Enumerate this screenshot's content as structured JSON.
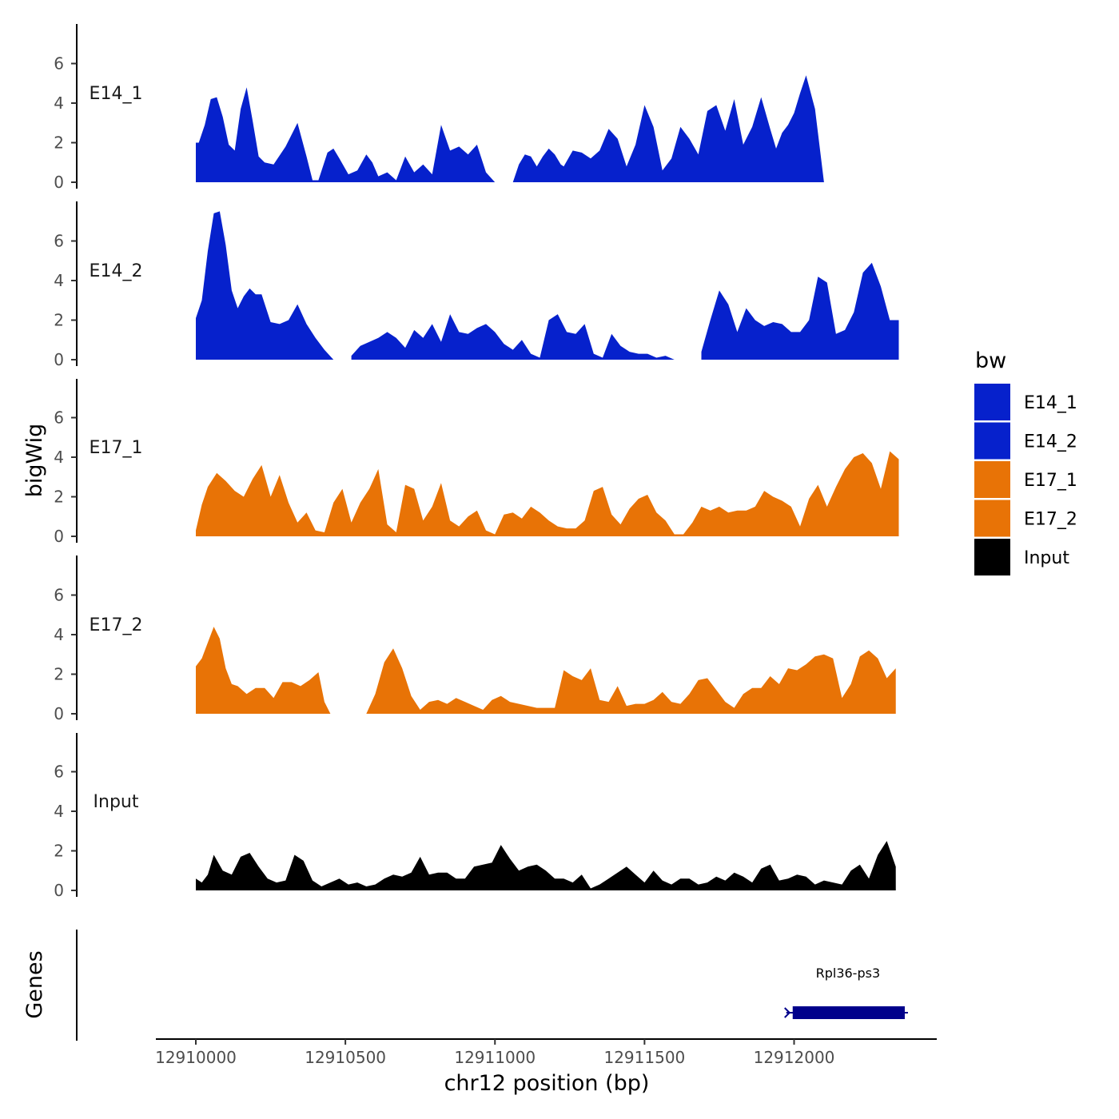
{
  "chart_data": {
    "type": "area",
    "chromosome": "chr12",
    "xlabel": "chr12 position (bp)",
    "ylabel": "bigWig",
    "genes_label": "Genes",
    "xlim": [
      12909870,
      12912470
    ],
    "x_ticks": [
      12910000,
      12910500,
      12911000,
      12911500,
      12912000
    ],
    "x_tick_labels": [
      "12910000",
      "12910500",
      "12911000",
      "12911500",
      "12912000"
    ],
    "ylim": [
      0,
      7.8
    ],
    "y_ticks": [
      0,
      2,
      4,
      6
    ],
    "y_tick_labels": [
      "0",
      "2",
      "4",
      "6"
    ],
    "legend": {
      "title": "bw",
      "position": "right",
      "entries": [
        {
          "label": "E14_1",
          "color": "#0621CC"
        },
        {
          "label": "E14_2",
          "color": "#0621CC"
        },
        {
          "label": "E17_1",
          "color": "#E87306"
        },
        {
          "label": "E17_2",
          "color": "#E87306"
        },
        {
          "label": "Input",
          "color": "#000000"
        }
      ]
    },
    "series": [
      {
        "name": "E14_1",
        "color": "#0621CC",
        "x": [
          12910000,
          12910010,
          12910030,
          12910050,
          12910070,
          12910090,
          12910110,
          12910130,
          12910150,
          12910170,
          12910190,
          12910210,
          12910230,
          12910260,
          12910300,
          12910340,
          12910370,
          12910390,
          12910410,
          12910440,
          12910460,
          12910480,
          12910510,
          12910540,
          12910570,
          12910590,
          12910610,
          12910640,
          12910670,
          12910700,
          12910730,
          12910760,
          12910790,
          12910820,
          12910850,
          12910880,
          12910910,
          12910940,
          12910970,
          12911000,
          12911020,
          12911040,
          12911060,
          12911080,
          12911100,
          12911120,
          12911140,
          12911160,
          12911180,
          12911200,
          12911220,
          12911230,
          12911260,
          12911290,
          12911320,
          12911350,
          12911380,
          12911410,
          12911440,
          12911470,
          12911500,
          12911530,
          12911560,
          12911590,
          12911620,
          12911650,
          12911680,
          12911710,
          12911740,
          12911770,
          12911800,
          12911830,
          12911860,
          12911890,
          12911920,
          12911940,
          12911960,
          12911980,
          12912000,
          12912020,
          12912040,
          12912070,
          12912100,
          12912130,
          12912160,
          12912190,
          12912220,
          12912250,
          12912270,
          12912290,
          12912310,
          12912330,
          12912350
        ],
        "values": [
          2.0,
          2.0,
          2.9,
          4.2,
          4.3,
          3.3,
          1.9,
          1.6,
          3.7,
          4.8,
          3.1,
          1.3,
          1.0,
          0.9,
          1.8,
          3.0,
          1.3,
          0.1,
          0.1,
          1.5,
          1.7,
          1.2,
          0.4,
          0.6,
          1.4,
          1.0,
          0.3,
          0.5,
          0.1,
          1.3,
          0.5,
          0.9,
          0.4,
          2.9,
          1.6,
          1.8,
          1.4,
          1.9,
          0.5,
          0.0,
          null,
          null,
          0.0,
          0.9,
          1.4,
          1.3,
          0.8,
          1.3,
          1.7,
          1.4,
          0.9,
          0.8,
          1.6,
          1.5,
          1.2,
          1.6,
          2.7,
          2.2,
          0.8,
          1.9,
          3.9,
          2.8,
          0.6,
          1.2,
          2.8,
          2.2,
          1.4,
          3.6,
          3.9,
          2.6,
          4.2,
          1.9,
          2.8,
          4.3,
          2.7,
          1.7,
          2.5,
          2.9,
          3.5,
          4.5,
          5.4,
          3.7,
          0.0,
          null,
          null,
          null,
          null,
          null,
          null,
          null,
          null,
          null,
          null
        ]
      },
      {
        "name": "E14_2",
        "color": "#0621CC",
        "x": [
          12910000,
          12910020,
          12910040,
          12910060,
          12910080,
          12910100,
          12910120,
          12910140,
          12910160,
          12910180,
          12910200,
          12910220,
          12910250,
          12910280,
          12910310,
          12910340,
          12910370,
          12910400,
          12910430,
          12910460,
          12910480,
          12910500,
          12910520,
          12910550,
          12910580,
          12910610,
          12910640,
          12910670,
          12910700,
          12910730,
          12910760,
          12910790,
          12910820,
          12910850,
          12910880,
          12910910,
          12910940,
          12910970,
          12911000,
          12911030,
          12911060,
          12911090,
          12911120,
          12911150,
          12911180,
          12911210,
          12911240,
          12911270,
          12911300,
          12911330,
          12911360,
          12911390,
          12911420,
          12911450,
          12911480,
          12911510,
          12911540,
          12911570,
          12911600,
          12911630,
          12911660,
          12911690,
          12911720,
          12911750,
          12911780,
          12911810,
          12911840,
          12911870,
          12911900,
          12911930,
          12911960,
          12911990,
          12912020,
          12912050,
          12912080,
          12912110,
          12912140,
          12912170,
          12912200,
          12912230,
          12912260,
          12912290,
          12912320,
          12912350
        ],
        "values": [
          2.1,
          3.0,
          5.5,
          7.4,
          7.5,
          5.8,
          3.5,
          2.6,
          3.2,
          3.6,
          3.3,
          3.3,
          1.9,
          1.8,
          2.0,
          2.8,
          1.8,
          1.1,
          0.5,
          0.0,
          null,
          null,
          0.2,
          0.7,
          0.9,
          1.1,
          1.4,
          1.1,
          0.6,
          1.5,
          1.1,
          1.8,
          0.9,
          2.3,
          1.4,
          1.3,
          1.6,
          1.8,
          1.4,
          0.8,
          0.5,
          1.0,
          0.3,
          0.1,
          2.0,
          2.3,
          1.4,
          1.3,
          1.8,
          0.3,
          0.1,
          1.3,
          0.7,
          0.4,
          0.3,
          0.3,
          0.1,
          0.2,
          0.0,
          null,
          null,
          0.4,
          2.0,
          3.5,
          2.8,
          1.4,
          2.6,
          2.0,
          1.7,
          1.9,
          1.8,
          1.4,
          1.4,
          2.0,
          4.2,
          3.9,
          1.3,
          1.5,
          2.4,
          4.4,
          4.9,
          3.7,
          2.0,
          2.0
        ]
      },
      {
        "name": "E17_1",
        "color": "#E87306",
        "x": [
          12910000,
          12910020,
          12910040,
          12910070,
          12910100,
          12910130,
          12910160,
          12910190,
          12910220,
          12910250,
          12910280,
          12910310,
          12910340,
          12910370,
          12910400,
          12910430,
          12910460,
          12910490,
          12910520,
          12910550,
          12910580,
          12910610,
          12910640,
          12910670,
          12910700,
          12910730,
          12910760,
          12910790,
          12910820,
          12910850,
          12910880,
          12910910,
          12910940,
          12910970,
          12911000,
          12911030,
          12911060,
          12911090,
          12911120,
          12911150,
          12911180,
          12911210,
          12911240,
          12911270,
          12911300,
          12911330,
          12911360,
          12911390,
          12911420,
          12911450,
          12911480,
          12911510,
          12911540,
          12911570,
          12911600,
          12911630,
          12911660,
          12911690,
          12911720,
          12911750,
          12911780,
          12911810,
          12911840,
          12911870,
          12911900,
          12911930,
          12911960,
          12911990,
          12912020,
          12912050,
          12912080,
          12912110,
          12912140,
          12912170,
          12912200,
          12912230,
          12912260,
          12912290,
          12912320,
          12912350
        ],
        "values": [
          0.3,
          1.6,
          2.5,
          3.2,
          2.8,
          2.3,
          2.0,
          2.9,
          3.6,
          2.0,
          3.1,
          1.7,
          0.7,
          1.2,
          0.3,
          0.2,
          1.7,
          2.4,
          0.7,
          1.7,
          2.4,
          3.4,
          0.6,
          0.2,
          2.6,
          2.4,
          0.8,
          1.5,
          2.7,
          0.8,
          0.5,
          1.0,
          1.3,
          0.3,
          0.1,
          1.1,
          1.2,
          0.9,
          1.5,
          1.2,
          0.8,
          0.5,
          0.4,
          0.4,
          0.8,
          2.3,
          2.5,
          1.1,
          0.6,
          1.4,
          1.9,
          2.1,
          1.2,
          0.8,
          0.1,
          0.1,
          0.7,
          1.5,
          1.3,
          1.5,
          1.2,
          1.3,
          1.3,
          1.5,
          2.3,
          2.0,
          1.8,
          1.5,
          0.5,
          1.9,
          2.6,
          1.5,
          2.5,
          3.4,
          4.0,
          4.2,
          3.7,
          2.4,
          4.3,
          3.9
        ]
      },
      {
        "name": "E17_2",
        "color": "#E87306",
        "x": [
          12910000,
          12910020,
          12910040,
          12910060,
          12910080,
          12910100,
          12910120,
          12910140,
          12910170,
          12910200,
          12910230,
          12910260,
          12910290,
          12910320,
          12910350,
          12910380,
          12910410,
          12910430,
          12910450,
          12910480,
          12910510,
          12910540,
          12910570,
          12910600,
          12910630,
          12910660,
          12910690,
          12910720,
          12910750,
          12910780,
          12910810,
          12910840,
          12910870,
          12910900,
          12910930,
          12910960,
          12910990,
          12911020,
          12911050,
          12911080,
          12911110,
          12911140,
          12911170,
          12911200,
          12911230,
          12911260,
          12911290,
          12911320,
          12911350,
          12911380,
          12911410,
          12911440,
          12911470,
          12911500,
          12911530,
          12911560,
          12911590,
          12911620,
          12911650,
          12911680,
          12911710,
          12911740,
          12911770,
          12911800,
          12911830,
          12911860,
          12911890,
          12911920,
          12911950,
          12911980,
          12912010,
          12912040,
          12912070,
          12912100,
          12912130,
          12912160,
          12912190,
          12912220,
          12912250,
          12912280,
          12912310,
          12912340
        ],
        "values": [
          2.4,
          2.8,
          3.6,
          4.4,
          3.8,
          2.3,
          1.5,
          1.4,
          1.0,
          1.3,
          1.3,
          0.8,
          1.6,
          1.6,
          1.4,
          1.7,
          2.1,
          0.6,
          0.0,
          null,
          null,
          null,
          0.0,
          1.0,
          2.6,
          3.3,
          2.3,
          0.9,
          0.2,
          0.6,
          0.7,
          0.5,
          0.8,
          0.6,
          0.4,
          0.2,
          0.7,
          0.9,
          0.6,
          0.5,
          0.4,
          0.3,
          0.3,
          0.3,
          2.2,
          1.9,
          1.7,
          2.3,
          0.7,
          0.6,
          1.4,
          0.4,
          0.5,
          0.5,
          0.7,
          1.1,
          0.6,
          0.5,
          1.0,
          1.7,
          1.8,
          1.2,
          0.6,
          0.3,
          1.0,
          1.3,
          1.3,
          1.9,
          1.5,
          2.3,
          2.2,
          2.5,
          2.9,
          3.0,
          2.8,
          0.8,
          1.5,
          2.9,
          3.2,
          2.8,
          1.8,
          2.3
        ]
      },
      {
        "name": "Input",
        "color": "#000000",
        "x": [
          12910000,
          12910020,
          12910040,
          12910060,
          12910090,
          12910120,
          12910150,
          12910180,
          12910210,
          12910240,
          12910270,
          12910300,
          12910330,
          12910360,
          12910390,
          12910420,
          12910450,
          12910480,
          12910510,
          12910540,
          12910570,
          12910600,
          12910630,
          12910660,
          12910690,
          12910720,
          12910750,
          12910780,
          12910810,
          12910840,
          12910870,
          12910900,
          12910930,
          12910960,
          12910990,
          12911020,
          12911050,
          12911080,
          12911110,
          12911140,
          12911170,
          12911200,
          12911230,
          12911260,
          12911290,
          12911320,
          12911350,
          12911380,
          12911410,
          12911440,
          12911470,
          12911500,
          12911530,
          12911560,
          12911590,
          12911620,
          12911650,
          12911680,
          12911710,
          12911740,
          12911770,
          12911800,
          12911830,
          12911860,
          12911890,
          12911920,
          12911950,
          12911980,
          12912010,
          12912040,
          12912070,
          12912100,
          12912130,
          12912160,
          12912190,
          12912220,
          12912250,
          12912280,
          12912310,
          12912340
        ],
        "values": [
          0.6,
          0.4,
          0.8,
          1.8,
          1.0,
          0.8,
          1.7,
          1.9,
          1.2,
          0.6,
          0.4,
          0.5,
          1.8,
          1.5,
          0.5,
          0.2,
          0.4,
          0.6,
          0.3,
          0.4,
          0.2,
          0.3,
          0.6,
          0.8,
          0.7,
          0.9,
          1.7,
          0.8,
          0.9,
          0.9,
          0.6,
          0.6,
          1.2,
          1.3,
          1.4,
          2.3,
          1.6,
          1.0,
          1.2,
          1.3,
          1.0,
          0.6,
          0.6,
          0.4,
          0.8,
          0.1,
          0.3,
          0.6,
          0.9,
          1.2,
          0.8,
          0.4,
          1.0,
          0.5,
          0.3,
          0.6,
          0.6,
          0.3,
          0.4,
          0.7,
          0.5,
          0.9,
          0.7,
          0.4,
          1.1,
          1.3,
          0.5,
          0.6,
          0.8,
          0.7,
          0.3,
          0.5,
          0.4,
          0.3,
          1.0,
          1.3,
          0.6,
          1.8,
          2.5,
          1.2
        ]
      }
    ],
    "genes": [
      {
        "name": "Rpl36-ps3",
        "start": 12911990,
        "end": 12912370,
        "strand": "-",
        "color": "#00008B"
      }
    ]
  }
}
